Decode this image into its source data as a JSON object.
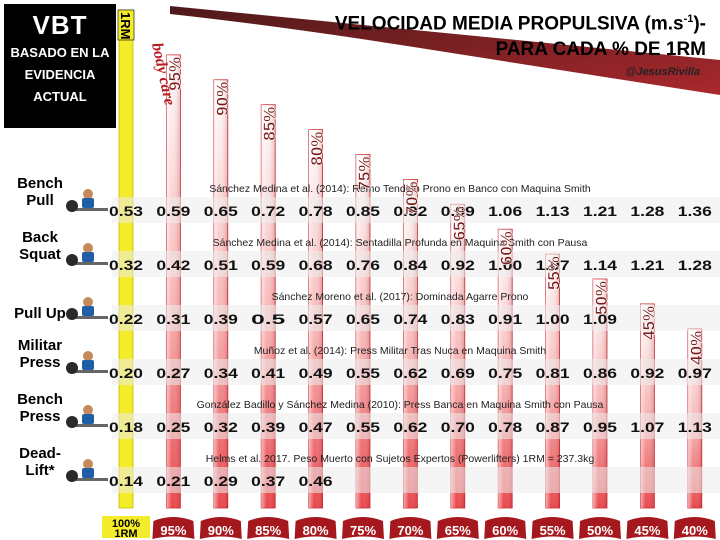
{
  "header": {
    "logo_line1": "VBT",
    "logo_lines": [
      "BASADO EN LA",
      "EVIDENCIA",
      "ACTUAL"
    ],
    "title_line1": "VELOCIDAD MEDIA PROPULSIVA (m.s",
    "title_sup": "-1",
    "title_line1_end": ")-",
    "title_line2": "PARA CADA % DE 1RM",
    "handle": "@JesusRivilla",
    "watermark": "body care"
  },
  "chart_data": {
    "type": "table",
    "top_label_first": "1RM",
    "columns": [
      "100%\n1RM",
      "95%",
      "90%",
      "85%",
      "80%",
      "75%",
      "70%",
      "65%",
      "60%",
      "55%",
      "50%",
      "45%",
      "40%"
    ],
    "column_labels_top": [
      "95%",
      "90%",
      "85%",
      "80%",
      "75%",
      "70%",
      "65%",
      "60%",
      "55%",
      "50%",
      "45%",
      "40%"
    ],
    "bottom_first_label": [
      "100%",
      "1RM"
    ],
    "bottom_labels": [
      "95%",
      "90%",
      "85%",
      "80%",
      "75%",
      "70%",
      "65%",
      "60%",
      "55%",
      "50%",
      "45%",
      "40%"
    ],
    "bar_heights_pct": [
      100,
      95,
      90,
      85,
      80,
      75,
      70,
      65,
      60,
      55,
      50,
      45,
      40
    ],
    "rows": [
      {
        "exercise": [
          "Bench",
          "Pull"
        ],
        "source": "Sánchez Medina et al. (2014): Remo Tendido Prono en Banco con Maquina Smith",
        "values": [
          "0.53",
          "0.59",
          "0.65",
          "0.72",
          "0.78",
          "0.85",
          "0.92",
          "0.99",
          "1.06",
          "1.13",
          "1.21",
          "1.28",
          "1.36"
        ]
      },
      {
        "exercise": [
          "Back",
          "Squat"
        ],
        "source": "Sánchez Medina et al. (2014): Sentadilla Profunda en Maquina Smith con Pausa",
        "values": [
          "0.32",
          "0.42",
          "0.51",
          "0.59",
          "0.68",
          "0.76",
          "0.84",
          "0.92",
          "1.00",
          "1.07",
          "1.14",
          "1.21",
          "1.28"
        ]
      },
      {
        "exercise": [
          "Pull Up"
        ],
        "source": "Sánchez Moreno et al. (2017): Dominada Agarre Prono",
        "values": [
          "0.22",
          "0.31",
          "0.39",
          "0.5",
          "0.57",
          "0.65",
          "0.74",
          "0.83",
          "0.91",
          "1.00",
          "1.09",
          "",
          ""
        ]
      },
      {
        "exercise": [
          "Militar",
          "Press"
        ],
        "source": "Muñoz et al. (2014): Press Militar Tras Nuca en Maquina Smith",
        "values": [
          "0.20",
          "0.27",
          "0.34",
          "0.41",
          "0.49",
          "0.55",
          "0.62",
          "0.69",
          "0.75",
          "0.81",
          "0.86",
          "0.92",
          "0.97"
        ]
      },
      {
        "exercise": [
          "Bench",
          "Press"
        ],
        "source": "González Badillo y Sánchez Medina (2010): Press Banca en Maquina Smith con Pausa",
        "values": [
          "0.18",
          "0.25",
          "0.32",
          "0.39",
          "0.47",
          "0.55",
          "0.62",
          "0.70",
          "0.78",
          "0.87",
          "0.95",
          "1.07",
          "1.13"
        ]
      },
      {
        "exercise": [
          "Dead-",
          "Lift*"
        ],
        "source": "Helms et al. 2017. Peso Muerto con Sujetos Expertos (Powerlifters) 1RM = 237.3kg",
        "values": [
          "0.14",
          "0.21",
          "0.29",
          "0.37",
          "0.46",
          "",
          "",
          "",
          "",
          "",
          "",
          "",
          ""
        ]
      }
    ]
  },
  "colors": {
    "bar_top": "#ffffff",
    "bar_bottom": "#e8454a",
    "bar_edge": "#c92a30",
    "first_bar": "#f3ec2a",
    "label_dark": "#7a1a1a",
    "badge_red": "#a5181e",
    "row_band": "#ececec"
  }
}
